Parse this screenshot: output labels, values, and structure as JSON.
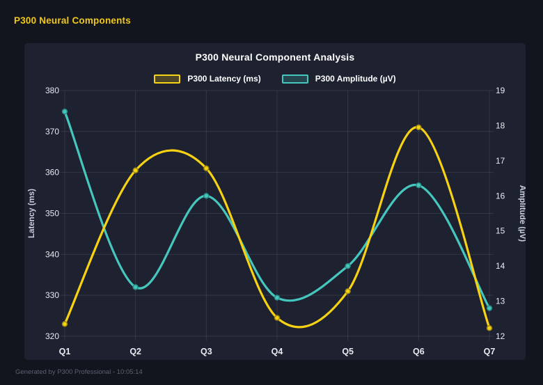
{
  "app": {
    "title": "P300 Neural Components",
    "footer": "Generated by P300 Professional - 10:05:14"
  },
  "colors": {
    "page_bg": "#13151e",
    "panel_bg": "#1d2130",
    "grid": "rgba(255,255,255,0.10)",
    "tick_text": "#e8eaf0",
    "axis_title_text": "#c9cedb",
    "title_text": "#ffffff",
    "header_text": "#f0c81c",
    "footer_text": "#5b6070",
    "latency_line": "#f6d213",
    "latency_marker_ring": "#a08c15",
    "amplitude_line": "#46c7be",
    "amplitude_marker_ring": "#2b8e87"
  },
  "chart_data": {
    "type": "line",
    "title": "P300 Neural Component Analysis",
    "categories": [
      "Q1",
      "Q2",
      "Q3",
      "Q4",
      "Q5",
      "Q6",
      "Q7"
    ],
    "series": [
      {
        "name": "P300 Latency (ms)",
        "axis": "left",
        "color_key": "latency_line",
        "ring_key": "latency_marker_ring",
        "values": [
          323,
          360.5,
          361,
          324.5,
          331,
          371,
          322
        ]
      },
      {
        "name": "P300 Amplitude (µV)",
        "axis": "right",
        "color_key": "amplitude_line",
        "ring_key": "amplitude_marker_ring",
        "values": [
          18.4,
          13.4,
          16.0,
          13.1,
          14.0,
          16.3,
          12.8
        ]
      }
    ],
    "left_axis": {
      "label": "Latency (ms)",
      "min": 320,
      "max": 380,
      "ticks": [
        320,
        330,
        340,
        350,
        360,
        370,
        380
      ]
    },
    "right_axis": {
      "label": "Amplitude (µV)",
      "min": 12,
      "max": 19,
      "ticks": [
        12,
        13,
        14,
        15,
        16,
        17,
        18,
        19
      ]
    },
    "grid": true,
    "legend_position": "top",
    "smoothing": "catmull-rom"
  }
}
